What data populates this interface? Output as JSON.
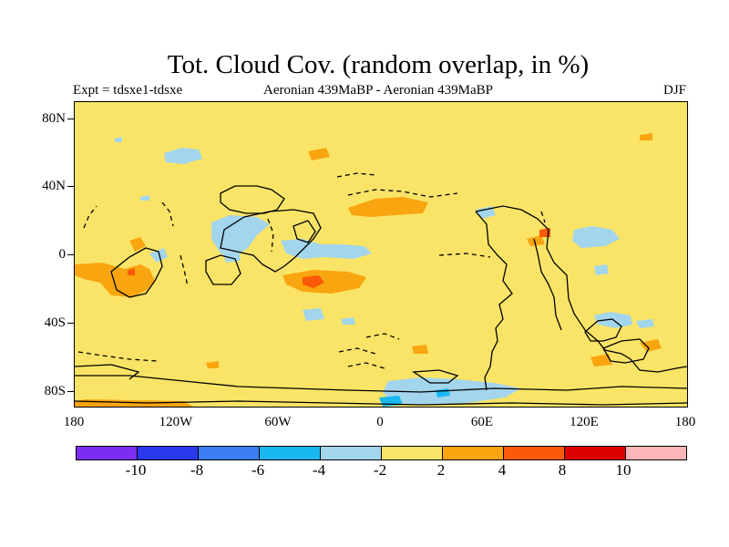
{
  "header": {
    "title": "Tot. Cloud Cov. (random overlap, in %)",
    "experiment": "Expt = tdsxe1-tdsxe",
    "comparison": "Aeronian 439MaBP - Aeronian 439MaBP",
    "season": "DJF"
  },
  "map": {
    "background_color": "#fae467",
    "lat_labels": [
      "80N",
      "40N",
      "0",
      "40S",
      "80S"
    ],
    "lon_labels": [
      "180",
      "120W",
      "60W",
      "0",
      "60E",
      "120E",
      "180"
    ]
  },
  "colorbar": {
    "colors": [
      "#7b2ef0",
      "#2a39ee",
      "#3a7ef1",
      "#1ab8f2",
      "#a3d5ed",
      "#fae467",
      "#f9a50f",
      "#fb5a08",
      "#dc0000",
      "#fbb7b7"
    ],
    "labels": [
      "-10",
      "-8",
      "-6",
      "-4",
      "-2",
      "2",
      "4",
      "8",
      "10"
    ]
  }
}
